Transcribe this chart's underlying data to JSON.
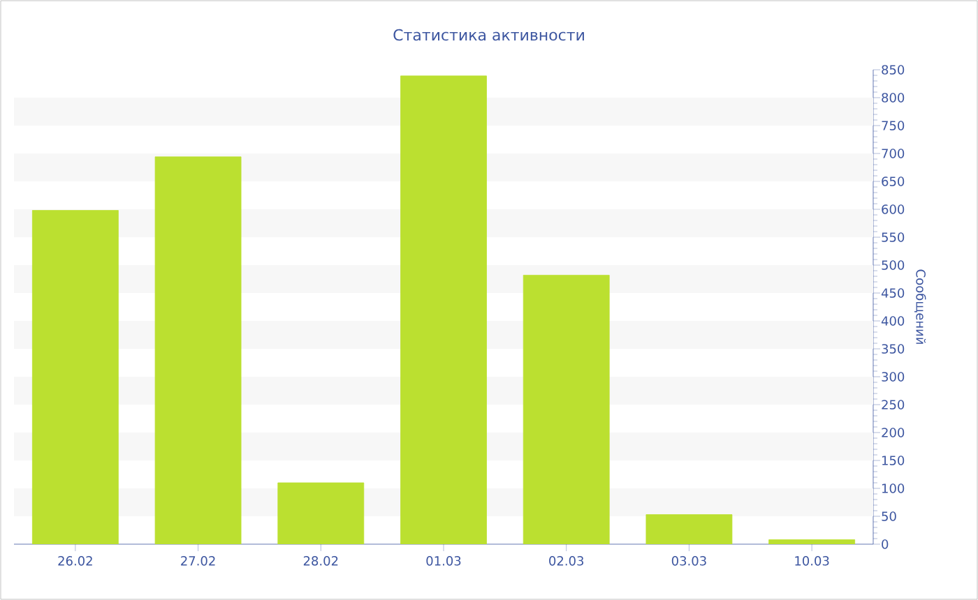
{
  "chart_data": {
    "type": "bar",
    "title": "Статистика активности",
    "ylabel": "Сообщений",
    "categories": [
      "26.02",
      "27.02",
      "28.02",
      "01.03",
      "02.03",
      "03.03",
      "10.03"
    ],
    "values": [
      598,
      694,
      110,
      839,
      482,
      53,
      8
    ],
    "color": "#bbe030",
    "ylim": [
      0,
      850
    ],
    "yticks": [
      0,
      50,
      100,
      150,
      200,
      250,
      300,
      350,
      400,
      450,
      500,
      550,
      600,
      650,
      700,
      750,
      800,
      850
    ],
    "bands": [
      {
        "axis": "y",
        "from": 50,
        "to": 100,
        "color": "#f7f7f7"
      },
      {
        "axis": "y",
        "from": 150,
        "to": 200,
        "color": "#f7f7f7"
      },
      {
        "axis": "y",
        "from": 250,
        "to": 300,
        "color": "#f7f7f7"
      },
      {
        "axis": "y",
        "from": 350,
        "to": 400,
        "color": "#f7f7f7"
      },
      {
        "axis": "y",
        "from": 450,
        "to": 500,
        "color": "#f7f7f7"
      },
      {
        "axis": "y",
        "from": 550,
        "to": 600,
        "color": "#f7f7f7"
      },
      {
        "axis": "y",
        "from": 650,
        "to": 700,
        "color": "#f7f7f7"
      },
      {
        "axis": "y",
        "from": 750,
        "to": 800,
        "color": "#f7f7f7"
      }
    ]
  }
}
